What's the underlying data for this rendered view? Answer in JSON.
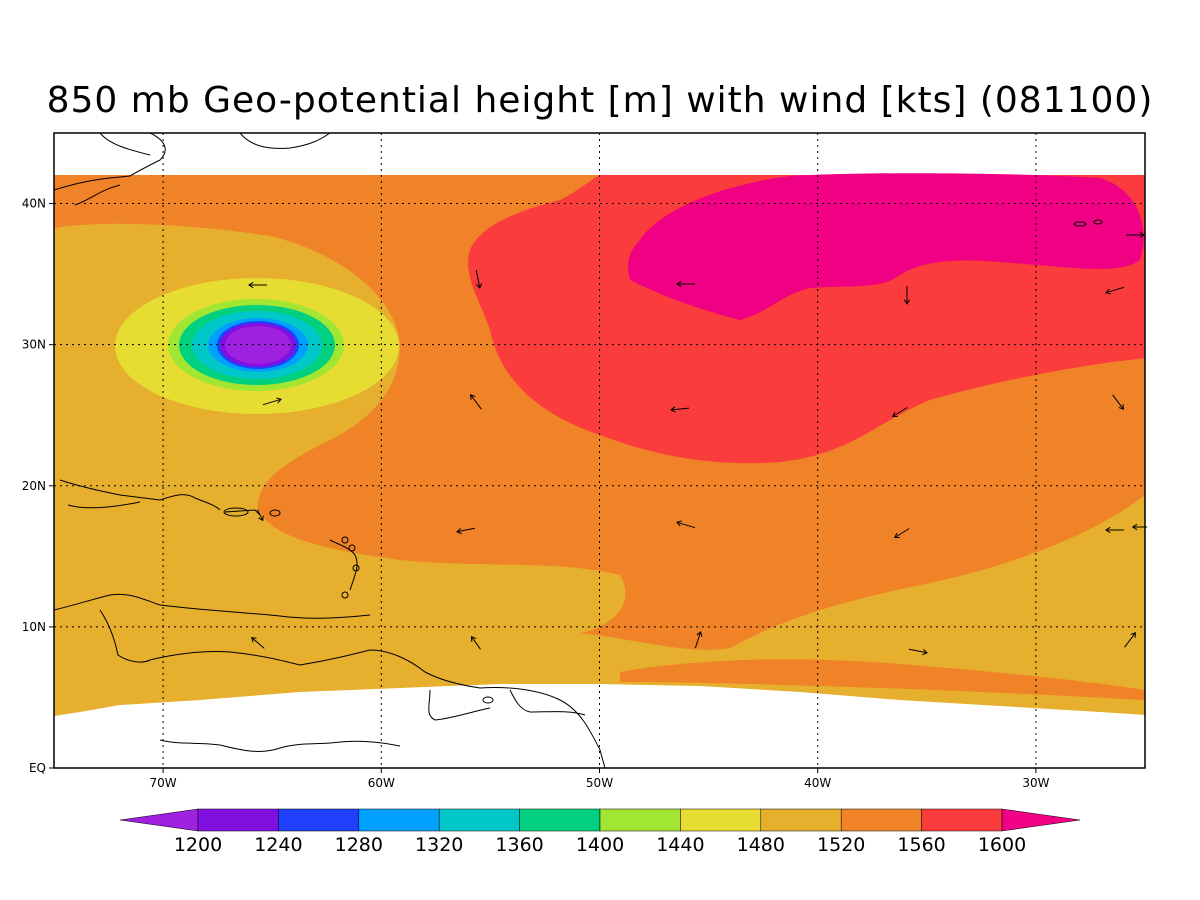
{
  "title": "850 mb Geo-potential height [m] with wind [kts] (081100)",
  "map": {
    "lon_range": [
      -75,
      -25
    ],
    "lat_range": [
      0,
      45
    ],
    "lon_ticks": [
      {
        "v": -70,
        "label": "70W"
      },
      {
        "v": -60,
        "label": "60W"
      },
      {
        "v": -50,
        "label": "50W"
      },
      {
        "v": -40,
        "label": "40W"
      },
      {
        "v": -30,
        "label": "30W"
      }
    ],
    "lat_ticks": [
      {
        "v": 0,
        "label": "EQ"
      },
      {
        "v": 10,
        "label": "10N"
      },
      {
        "v": 20,
        "label": "20N"
      },
      {
        "v": 30,
        "label": "30N"
      },
      {
        "v": 40,
        "label": "40N"
      }
    ],
    "grid": true
  },
  "colorbar": {
    "levels": [
      "1200",
      "1240",
      "1280",
      "1320",
      "1360",
      "1400",
      "1440",
      "1480",
      "1520",
      "1560",
      "1600"
    ],
    "colors": [
      "#a020e0",
      "#8010e0",
      "#2040ff",
      "#00a0ff",
      "#00c8c8",
      "#00d080",
      "#a0e632",
      "#e6dc32",
      "#e6af2d",
      "#f08228",
      "#fa3c3c",
      "#f00082"
    ]
  },
  "low_center": {
    "lon": -65.5,
    "lat": 30
  }
}
